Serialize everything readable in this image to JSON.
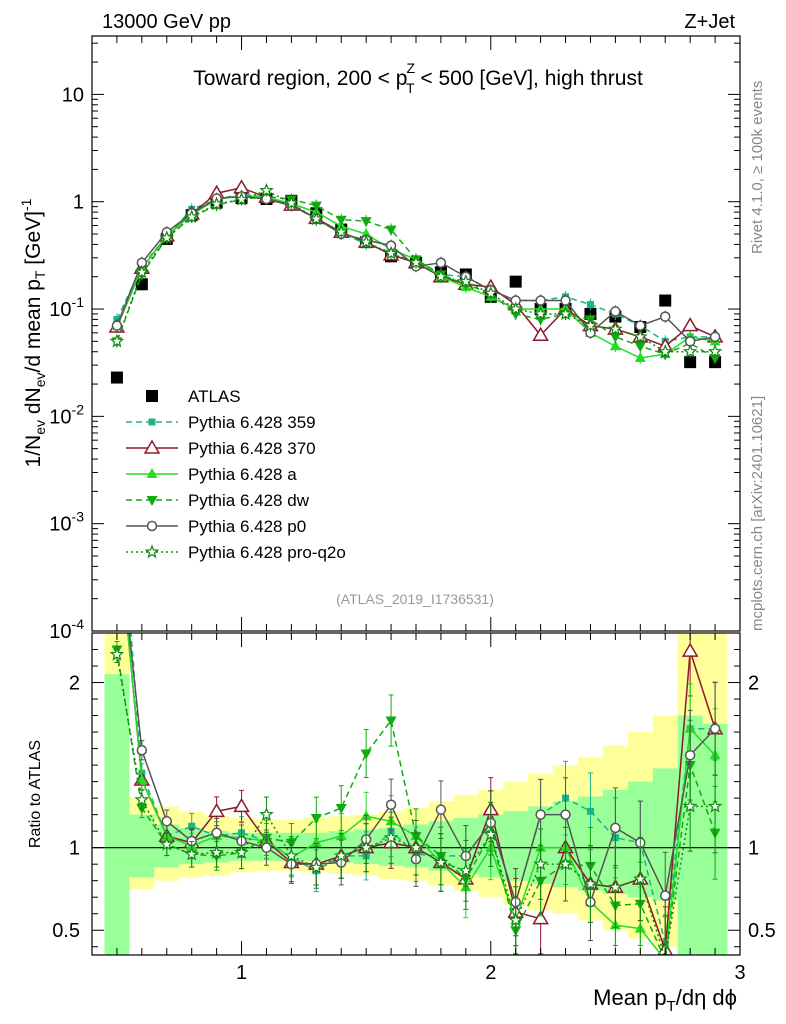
{
  "header": {
    "left": "13000 GeV pp",
    "right": "Z+Jet"
  },
  "side_labels": {
    "rivet": "Rivet 4.1.0, ≥ 100k events",
    "mcplots": "mcplots.cern.ch [arXiv:2401.10621]"
  },
  "colors": {
    "atlas": "#000000",
    "p359": "#1ab38a",
    "p370": "#8b1a2b",
    "pa": "#22dd22",
    "pdw": "#11aa11",
    "pp0": "#555555",
    "pq2o": "#118811",
    "band_outer": "#ffff99",
    "band_inner": "#99ff99"
  },
  "chart_data": [
    {
      "type": "line",
      "panel": "main",
      "title": "Toward region, 200 < p_T^Z < 500 [GeV], high thrust",
      "title_parts": {
        "a": "Toward region, 200 < p",
        "sub": "T",
        "sup": "Z",
        "b": " < 500 [GeV], high thrust"
      },
      "ylabel": "1/N_ev dN_ev/d mean p_T [GeV]^-1",
      "ylabel_parts": {
        "p1": "1/N",
        "s1": "ev",
        "p2": " dN",
        "s2": "ev",
        "p3": "/d mean p",
        "s3": "T",
        "p4": " [GeV]",
        "s4": "-1"
      },
      "yscale": "log",
      "ylim": [
        0.0001,
        35
      ],
      "xlim": [
        0.4,
        3.0
      ],
      "yticks": [
        {
          "value": 10,
          "label": "10"
        },
        {
          "value": 1,
          "label": "1"
        },
        {
          "value": 0.1,
          "label": "10",
          "exp": "-1"
        },
        {
          "value": 0.01,
          "label": "10",
          "exp": "-2"
        },
        {
          "value": 0.001,
          "label": "10",
          "exp": "-3"
        },
        {
          "value": 0.0001,
          "label": "10",
          "exp": "-4"
        }
      ],
      "watermark": "(ATLAS_2019_I1736531)",
      "legend_position": "lower-left",
      "x": [
        0.5,
        0.6,
        0.7,
        0.8,
        0.9,
        1.0,
        1.1,
        1.2,
        1.3,
        1.4,
        1.5,
        1.6,
        1.7,
        1.8,
        1.9,
        2.0,
        2.1,
        2.2,
        2.3,
        2.4,
        2.5,
        2.6,
        2.7,
        2.8,
        2.9
      ],
      "series": [
        {
          "key": "atlas",
          "name": "ATLAS",
          "style": "data",
          "marker": "square",
          "values": [
            0.023,
            0.17,
            0.45,
            0.75,
            0.98,
            1.08,
            1.06,
            1.02,
            0.78,
            0.55,
            0.42,
            0.31,
            0.27,
            0.22,
            0.21,
            0.13,
            0.18,
            0.1,
            0.1,
            0.09,
            0.085,
            0.068,
            0.12,
            0.032,
            0.032
          ]
        },
        {
          "key": "p359",
          "name": "Pythia 6.428 359",
          "style": "dashed",
          "marker": "small-square",
          "values": [
            0.08,
            0.25,
            0.48,
            0.85,
            1.05,
            1.18,
            1.1,
            0.96,
            0.67,
            0.52,
            0.4,
            0.34,
            0.26,
            0.21,
            0.2,
            0.15,
            0.12,
            0.12,
            0.13,
            0.11,
            0.09,
            0.07,
            0.05,
            0.055,
            0.055
          ]
        },
        {
          "key": "p370",
          "name": "Pythia 6.428 370",
          "style": "solid",
          "marker": "open-triangle",
          "values": [
            0.068,
            0.24,
            0.48,
            0.77,
            1.2,
            1.35,
            1.1,
            0.93,
            0.7,
            0.52,
            0.42,
            0.32,
            0.27,
            0.2,
            0.17,
            0.16,
            0.11,
            0.057,
            0.1,
            0.07,
            0.065,
            0.055,
            0.045,
            0.07,
            0.055
          ]
        },
        {
          "key": "pa",
          "name": "Pythia 6.428 a",
          "style": "solid",
          "marker": "triangle",
          "values": [
            0.07,
            0.24,
            0.48,
            0.76,
            1.05,
            1.14,
            1.1,
            0.96,
            0.8,
            0.59,
            0.5,
            0.36,
            0.29,
            0.2,
            0.16,
            0.13,
            0.1,
            0.1,
            0.1,
            0.06,
            0.045,
            0.035,
            0.038,
            0.055,
            0.05
          ]
        },
        {
          "key": "pdw",
          "name": "Pythia 6.428 dw",
          "style": "dashed",
          "marker": "triangle-down",
          "values": [
            0.05,
            0.21,
            0.46,
            0.72,
            0.93,
            1.05,
            1.12,
            1.05,
            0.92,
            0.68,
            0.66,
            0.55,
            0.29,
            0.21,
            0.17,
            0.14,
            0.09,
            0.08,
            0.09,
            0.08,
            0.055,
            0.045,
            0.038,
            0.048,
            0.035
          ]
        },
        {
          "key": "pp0",
          "name": "Pythia 6.428 p0",
          "style": "solid",
          "marker": "open-circle",
          "values": [
            0.07,
            0.27,
            0.52,
            0.78,
            1.07,
            1.12,
            1.06,
            0.92,
            0.7,
            0.5,
            0.44,
            0.39,
            0.25,
            0.27,
            0.2,
            0.15,
            0.12,
            0.12,
            0.12,
            0.06,
            0.095,
            0.07,
            0.085,
            0.05,
            0.055
          ]
        },
        {
          "key": "pq2o",
          "name": "Pythia 6.428 pro-q2o",
          "style": "dotted",
          "marker": "open-star",
          "values": [
            0.05,
            0.22,
            0.46,
            0.72,
            0.95,
            1.05,
            1.27,
            0.97,
            0.69,
            0.52,
            0.42,
            0.33,
            0.27,
            0.2,
            0.18,
            0.14,
            0.1,
            0.09,
            0.09,
            0.07,
            0.065,
            0.055,
            0.04,
            0.04,
            0.04
          ]
        }
      ]
    },
    {
      "type": "line",
      "panel": "ratio",
      "ylabel": "Ratio to ATLAS",
      "xlabel": "Mean p_T/dη dϕ",
      "xlabel_parts": {
        "a": "Mean p",
        "sub": "T",
        "b": "/dη dϕ"
      },
      "ylim": [
        0.35,
        2.3
      ],
      "xlim": [
        0.4,
        3.0
      ],
      "reference_line": 1,
      "yticks": [
        {
          "value": 0.5,
          "label": "0.5"
        },
        {
          "value": 1,
          "label": "1"
        },
        {
          "value": 2,
          "label": "2"
        }
      ],
      "xticks": [
        {
          "value": 1,
          "label": "1"
        },
        {
          "value": 2,
          "label": "2"
        },
        {
          "value": 3,
          "label": "3"
        }
      ],
      "x_edges": [
        0.45,
        0.55,
        0.65,
        0.75,
        0.85,
        0.95,
        1.05,
        1.15,
        1.25,
        1.35,
        1.45,
        1.55,
        1.65,
        1.75,
        1.85,
        1.95,
        2.05,
        2.15,
        2.25,
        2.35,
        2.45,
        2.55,
        2.65,
        2.75,
        2.85,
        2.95
      ],
      "band_outer": [
        [
          0.35,
          2.3
        ],
        [
          0.75,
          1.3
        ],
        [
          0.8,
          1.25
        ],
        [
          0.82,
          1.22
        ],
        [
          0.83,
          1.2
        ],
        [
          0.85,
          1.18
        ],
        [
          0.86,
          1.17
        ],
        [
          0.86,
          1.17
        ],
        [
          0.85,
          1.18
        ],
        [
          0.84,
          1.19
        ],
        [
          0.83,
          1.2
        ],
        [
          0.81,
          1.22
        ],
        [
          0.8,
          1.24
        ],
        [
          0.77,
          1.28
        ],
        [
          0.74,
          1.32
        ],
        [
          0.7,
          1.35
        ],
        [
          0.65,
          1.4
        ],
        [
          0.62,
          1.45
        ],
        [
          0.6,
          1.5
        ],
        [
          0.56,
          1.55
        ],
        [
          0.5,
          1.62
        ],
        [
          0.45,
          1.7
        ],
        [
          0.4,
          1.8
        ],
        [
          0.35,
          2.3
        ],
        [
          0.35,
          2.3
        ]
      ],
      "band_inner": [
        [
          0.35,
          2.05
        ],
        [
          0.82,
          1.2
        ],
        [
          0.88,
          1.14
        ],
        [
          0.9,
          1.12
        ],
        [
          0.91,
          1.1
        ],
        [
          0.92,
          1.09
        ],
        [
          0.92,
          1.09
        ],
        [
          0.92,
          1.09
        ],
        [
          0.92,
          1.09
        ],
        [
          0.91,
          1.1
        ],
        [
          0.9,
          1.11
        ],
        [
          0.89,
          1.12
        ],
        [
          0.88,
          1.14
        ],
        [
          0.86,
          1.16
        ],
        [
          0.84,
          1.18
        ],
        [
          0.82,
          1.2
        ],
        [
          0.8,
          1.22
        ],
        [
          0.78,
          1.25
        ],
        [
          0.76,
          1.28
        ],
        [
          0.74,
          1.31
        ],
        [
          0.72,
          1.35
        ],
        [
          0.7,
          1.4
        ],
        [
          0.68,
          1.48
        ],
        [
          0.35,
          1.8
        ],
        [
          0.35,
          1.75
        ]
      ],
      "series": [
        {
          "key": "p359",
          "values": [
            3.4,
            1.45,
            1.07,
            1.13,
            1.07,
            1.09,
            1.04,
            0.94,
            0.86,
            0.95,
            0.95,
            1.1,
            0.96,
            0.95,
            0.95,
            1.15,
            0.67,
            1.2,
            1.3,
            1.22,
            1.06,
            1.03,
            0.42,
            1.72,
            1.72
          ]
        },
        {
          "key": "p370",
          "values": [
            3.0,
            1.41,
            1.07,
            1.03,
            1.22,
            1.25,
            1.04,
            0.91,
            0.9,
            0.95,
            1.0,
            1.03,
            1.0,
            0.91,
            0.81,
            1.23,
            0.61,
            0.57,
            1.0,
            0.78,
            0.76,
            0.81,
            0.38,
            2.19,
            1.72
          ]
        },
        {
          "key": "pa",
          "values": [
            3.0,
            1.41,
            1.07,
            1.01,
            1.07,
            1.06,
            1.04,
            0.94,
            1.03,
            1.07,
            1.19,
            1.16,
            1.07,
            0.91,
            0.76,
            1.0,
            0.56,
            1.0,
            1.0,
            0.67,
            0.53,
            0.51,
            0.32,
            1.72,
            1.56
          ]
        },
        {
          "key": "pdw",
          "values": [
            2.2,
            1.24,
            1.02,
            0.96,
            0.95,
            0.97,
            1.06,
            1.03,
            1.18,
            1.24,
            1.57,
            1.77,
            1.07,
            0.95,
            0.81,
            1.08,
            0.5,
            0.8,
            0.9,
            0.89,
            0.65,
            0.66,
            0.32,
            1.5,
            1.09
          ]
        },
        {
          "key": "pp0",
          "values": [
            3.0,
            1.59,
            1.16,
            1.04,
            1.09,
            1.04,
            1.0,
            0.9,
            0.9,
            0.91,
            1.05,
            1.26,
            0.93,
            1.23,
            0.95,
            1.15,
            0.67,
            1.2,
            1.2,
            0.67,
            1.12,
            1.03,
            0.71,
            1.56,
            1.72
          ]
        },
        {
          "key": "pq2o",
          "values": [
            2.17,
            1.29,
            1.02,
            0.96,
            0.97,
            0.97,
            1.2,
            0.95,
            0.88,
            0.95,
            1.0,
            1.06,
            1.0,
            0.91,
            0.86,
            1.08,
            0.56,
            0.9,
            0.9,
            0.78,
            0.76,
            0.81,
            0.33,
            1.25,
            1.25
          ]
        }
      ]
    }
  ]
}
